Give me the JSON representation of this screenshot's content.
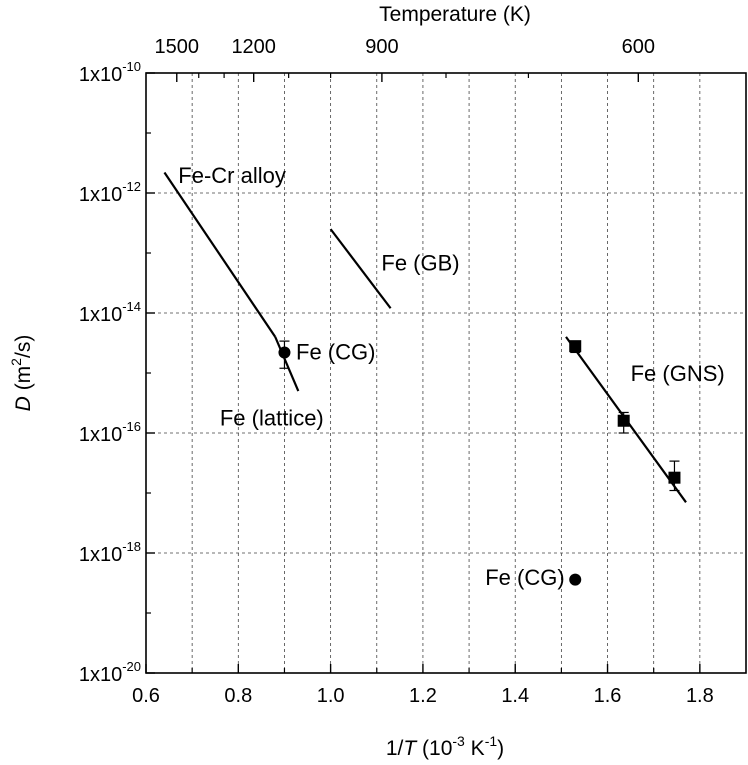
{
  "chart_data": {
    "type": "scatter",
    "title": "",
    "xlabel": {
      "prefix": "1/",
      "var": "T",
      "open": " (10",
      "exp": "-3",
      "mid": " K",
      "exp2": "-1",
      "close": ")"
    },
    "ylabel": {
      "var": "D",
      "open": " (m",
      "exp": "2",
      "close": "/s)"
    },
    "top_axis_title": "Temperature (K)",
    "xlim": [
      0.6,
      1.9
    ],
    "ylim_log10": [
      -20,
      -10
    ],
    "y_scale": "log",
    "grid": true,
    "x_ticks": [
      {
        "value": 0.6,
        "label": "0.6"
      },
      {
        "value": 0.8,
        "label": "0.8"
      },
      {
        "value": 1.0,
        "label": "1.0"
      },
      {
        "value": 1.2,
        "label": "1.2"
      },
      {
        "value": 1.4,
        "label": "1.4"
      },
      {
        "value": 1.6,
        "label": "1.6"
      },
      {
        "value": 1.8,
        "label": "1.8"
      }
    ],
    "y_ticks": [
      {
        "exp": -10,
        "base": "1x10",
        "sup": "-10"
      },
      {
        "exp": -12,
        "base": "1x10",
        "sup": "-12"
      },
      {
        "exp": -14,
        "base": "1x10",
        "sup": "-14"
      },
      {
        "exp": -16,
        "base": "1x10",
        "sup": "-16"
      },
      {
        "exp": -18,
        "base": "1x10",
        "sup": "-18"
      },
      {
        "exp": -20,
        "base": "1x10",
        "sup": "-20"
      }
    ],
    "top_ticks": [
      {
        "temperature_K": 1500,
        "label": "1500"
      },
      {
        "temperature_K": 1200,
        "label": "1200"
      },
      {
        "temperature_K": 900,
        "label": "900"
      },
      {
        "temperature_K": 600,
        "label": "600"
      }
    ],
    "top_minor_ticks_K": [
      1400,
      1300,
      1100,
      1000,
      800,
      700
    ],
    "lines": [
      {
        "name": "Fe-Cr alloy",
        "points": [
          {
            "x": 0.64,
            "y": 2.2e-12
          },
          {
            "x": 0.88,
            "y": 4e-15
          }
        ]
      },
      {
        "name": "Fe (lattice)",
        "points": [
          {
            "x": 0.88,
            "y": 4e-15
          },
          {
            "x": 0.93,
            "y": 5e-16
          }
        ]
      },
      {
        "name": "Fe (GB)",
        "points": [
          {
            "x": 1.0,
            "y": 2.5e-13
          },
          {
            "x": 1.13,
            "y": 1.2e-14
          }
        ]
      },
      {
        "name": "Fe (GNS)",
        "points": [
          {
            "x": 1.51,
            "y": 4e-15
          },
          {
            "x": 1.77,
            "y": 7e-18
          }
        ]
      }
    ],
    "series": [
      {
        "name": "Fe (CG)",
        "marker": "circle",
        "points": [
          {
            "x": 0.9,
            "y": 2.2e-15,
            "y_low": 1.2e-15,
            "y_high": 3.4e-15
          },
          {
            "x": 1.53,
            "y": 3.6e-19
          }
        ]
      },
      {
        "name": "Fe (GNS)",
        "marker": "square",
        "points": [
          {
            "x": 1.53,
            "y": 2.8e-15,
            "y_low": 2.2e-15,
            "y_high": 3.4e-15
          },
          {
            "x": 1.635,
            "y": 1.6e-16,
            "y_low": 1e-16,
            "y_high": 2.2e-16
          },
          {
            "x": 1.745,
            "y": 1.8e-17,
            "y_low": 1.1e-17,
            "y_high": 3.4e-17
          }
        ]
      }
    ],
    "annotations": [
      {
        "text": "Fe-Cr alloy",
        "x": 0.67,
        "y": 2e-12
      },
      {
        "text": "Fe (GB)",
        "x": 1.11,
        "y": 7e-14
      },
      {
        "text": "Fe (CG)",
        "x": 0.925,
        "y": 2.3e-15
      },
      {
        "text": "Fe (lattice)",
        "x": 0.76,
        "y": 1.8e-16
      },
      {
        "text": "Fe (GNS)",
        "x": 1.65,
        "y": 1e-15
      },
      {
        "text": "Fe (CG)",
        "x": 1.335,
        "y": 4e-19
      }
    ]
  }
}
